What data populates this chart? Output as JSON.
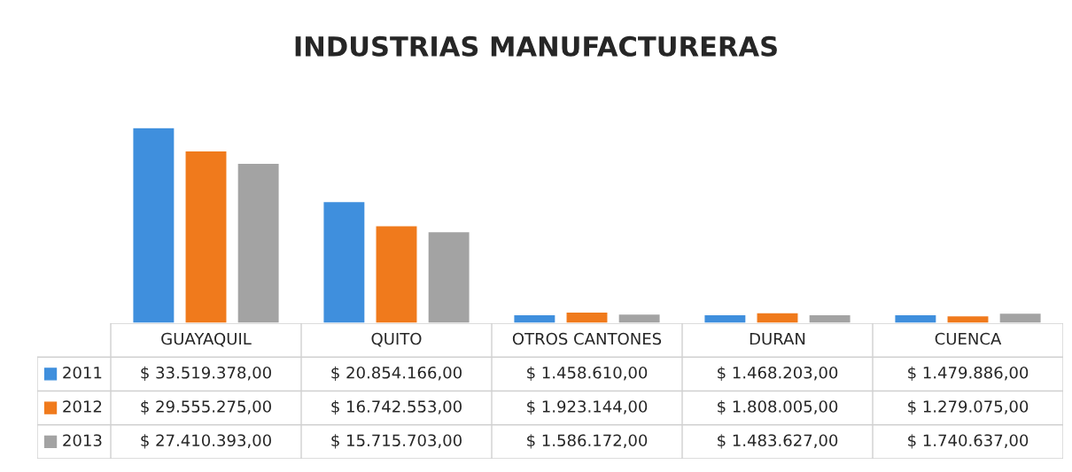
{
  "chart_data": {
    "type": "bar",
    "title": "INDUSTRIAS MANUFACTURERAS",
    "categories": [
      "GUAYAQUIL",
      "QUITO",
      "OTROS CANTONES",
      "DURAN",
      "CUENCA"
    ],
    "legend": "bottom",
    "series": [
      {
        "name": "2011",
        "color": "#3f8fdd",
        "values": [
          33519378,
          20854166,
          1458610,
          1468203,
          1479886
        ],
        "value_labels": [
          "$ 33.519.378,00",
          "$ 20.854.166,00",
          "$ 1.458.610,00",
          "$ 1.468.203,00",
          "$ 1.479.886,00"
        ]
      },
      {
        "name": "2012",
        "color": "#f07a1c",
        "values": [
          29555275,
          16742553,
          1923144,
          1808005,
          1279075
        ],
        "value_labels": [
          "$ 29.555.275,00",
          "$ 16.742.553,00",
          "$ 1.923.144,00",
          "$ 1.808.005,00",
          "$ 1.279.075,00"
        ]
      },
      {
        "name": "2013",
        "color": "#a3a3a3",
        "values": [
          27410393,
          15715703,
          1586172,
          1483627,
          1740637
        ],
        "value_labels": [
          "$ 27.410.393,00",
          "$ 15.715.703,00",
          "$ 1.586.172,00",
          "$ 1.483.627,00",
          "$ 1.740.637,00"
        ]
      }
    ]
  }
}
